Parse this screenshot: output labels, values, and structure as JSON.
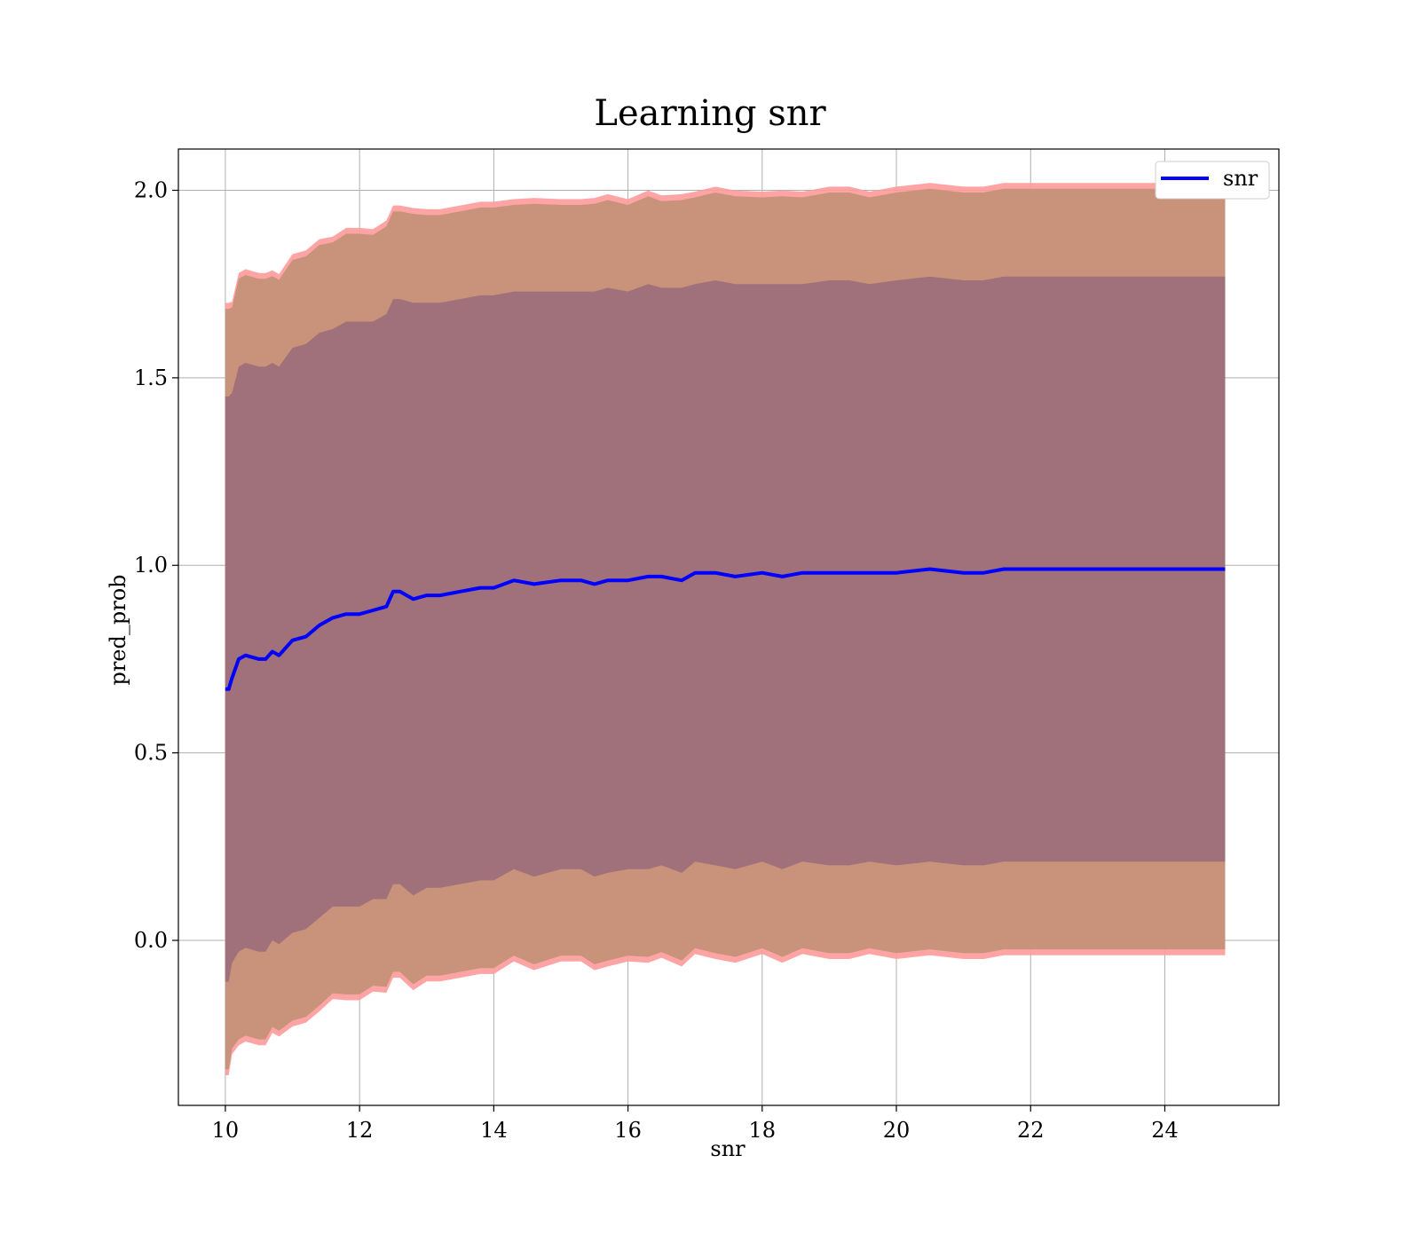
{
  "chart_data": {
    "type": "line",
    "title": "Learning snr",
    "xlabel": "snr",
    "ylabel": "pred_prob",
    "xlim": [
      9.3,
      25.7
    ],
    "ylim": [
      -0.44,
      2.11
    ],
    "xticks": [
      10,
      12,
      14,
      16,
      18,
      20,
      22,
      24
    ],
    "xtick_labels": [
      "10",
      "12",
      "14",
      "16",
      "18",
      "20",
      "22",
      "24"
    ],
    "yticks": [
      0.0,
      0.5,
      1.0,
      1.5,
      2.0
    ],
    "ytick_labels": [
      "0.0",
      "0.5",
      "1.0",
      "1.5",
      "2.0"
    ],
    "grid": true,
    "legend_position": "top-right",
    "series": [
      {
        "name": "snr",
        "color": "#0000ff",
        "x": [
          10.0,
          10.05,
          10.1,
          10.2,
          10.3,
          10.5,
          10.6,
          10.7,
          10.8,
          11.0,
          11.2,
          11.4,
          11.6,
          11.8,
          12.0,
          12.2,
          12.4,
          12.5,
          12.6,
          12.8,
          13.0,
          13.2,
          13.5,
          13.8,
          14.0,
          14.3,
          14.6,
          15.0,
          15.3,
          15.5,
          15.7,
          16.0,
          16.3,
          16.5,
          16.8,
          17.0,
          17.3,
          17.6,
          18.0,
          18.3,
          18.6,
          19.0,
          19.3,
          19.6,
          20.0,
          20.5,
          21.0,
          21.3,
          21.6,
          22.0,
          22.5,
          23.0,
          23.5,
          24.0,
          24.5,
          24.9
        ],
        "mean": [
          0.67,
          0.67,
          0.7,
          0.75,
          0.76,
          0.75,
          0.75,
          0.77,
          0.76,
          0.8,
          0.81,
          0.84,
          0.86,
          0.87,
          0.87,
          0.88,
          0.89,
          0.93,
          0.93,
          0.91,
          0.92,
          0.92,
          0.93,
          0.94,
          0.94,
          0.96,
          0.95,
          0.96,
          0.96,
          0.95,
          0.96,
          0.96,
          0.97,
          0.97,
          0.96,
          0.98,
          0.98,
          0.97,
          0.98,
          0.97,
          0.98,
          0.98,
          0.98,
          0.98,
          0.98,
          0.99,
          0.98,
          0.98,
          0.99,
          0.99,
          0.99,
          0.99,
          0.99,
          0.99,
          0.99,
          0.99
        ],
        "std": [
          0.78,
          0.78,
          0.76,
          0.78,
          0.78,
          0.78,
          0.78,
          0.77,
          0.77,
          0.78,
          0.78,
          0.78,
          0.77,
          0.78,
          0.78,
          0.77,
          0.78,
          0.78,
          0.78,
          0.79,
          0.78,
          0.78,
          0.78,
          0.78,
          0.78,
          0.77,
          0.78,
          0.77,
          0.77,
          0.78,
          0.78,
          0.77,
          0.78,
          0.77,
          0.78,
          0.77,
          0.78,
          0.78,
          0.77,
          0.78,
          0.77,
          0.78,
          0.78,
          0.77,
          0.78,
          0.78,
          0.78,
          0.78,
          0.78,
          0.78,
          0.78,
          0.78,
          0.78,
          0.78,
          0.78,
          0.78
        ]
      }
    ],
    "band_colors": {
      "inner_band": "#a0717a",
      "outer_band": "#c8937a",
      "outer_edge": "#ff9a9a"
    }
  }
}
